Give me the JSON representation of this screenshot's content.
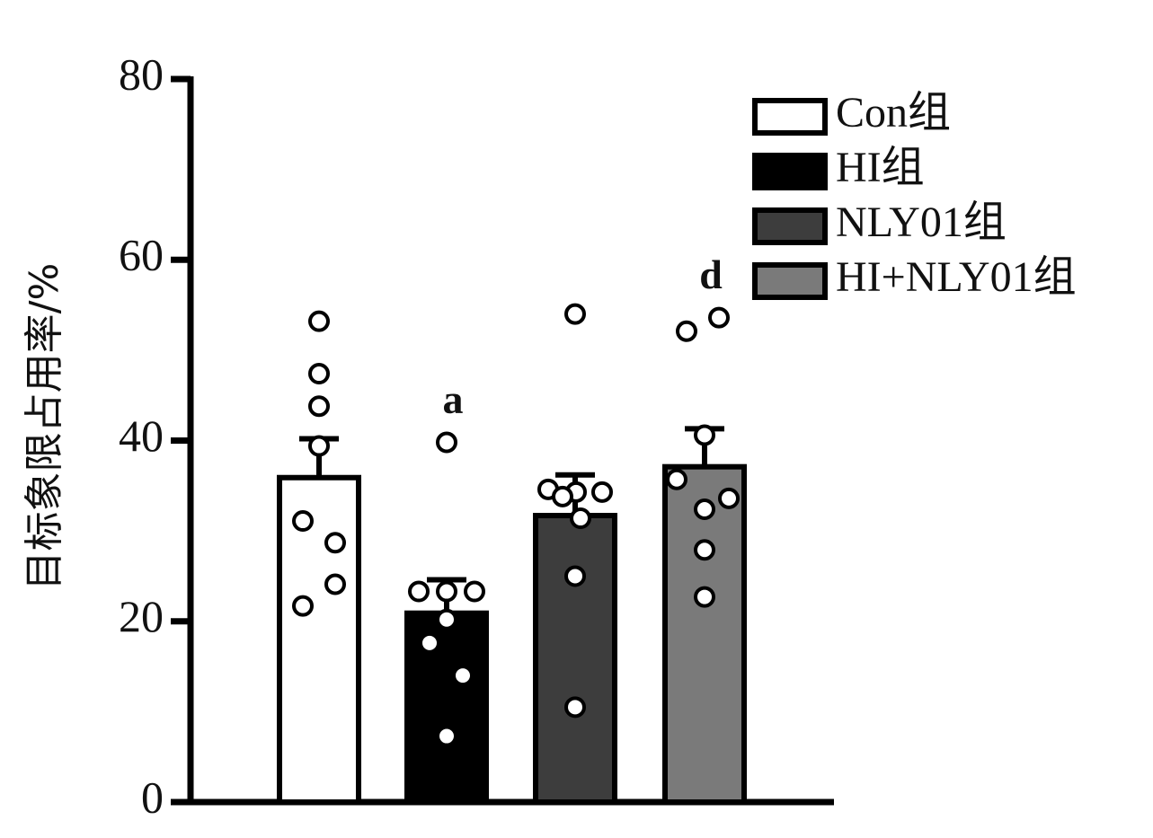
{
  "chart_data": {
    "type": "bar",
    "ylabel": "目标象限占用率/%",
    "ylim": [
      0,
      80
    ],
    "yticks": [
      0,
      20,
      40,
      60,
      80
    ],
    "series": [
      {
        "name": "Con组",
        "color": "#ffffff",
        "value": 35.9,
        "error": 4.3,
        "points": [
          53.2,
          47.4,
          43.8,
          39.4,
          31.1,
          28.7,
          24.1,
          21.7
        ]
      },
      {
        "name": "HI组",
        "color": "#000000",
        "value": 20.9,
        "error": 3.7,
        "annotation": "a",
        "points": [
          39.8,
          23.3,
          23.3,
          23.3,
          20.2,
          17.6,
          14.0,
          7.3
        ]
      },
      {
        "name": "NLY01组",
        "color": "#3d3d3d",
        "value": 31.7,
        "error": 4.5,
        "points": [
          54.0,
          34.6,
          34.3,
          34.3,
          33.8,
          31.4,
          25.0,
          10.5
        ]
      },
      {
        "name": "HI+NLY01组",
        "color": "#7a7a7a",
        "value": 37.1,
        "error": 4.2,
        "annotation": "d",
        "points": [
          53.6,
          52.1,
          40.6,
          35.7,
          33.6,
          32.4,
          27.9,
          22.7
        ]
      }
    ]
  }
}
